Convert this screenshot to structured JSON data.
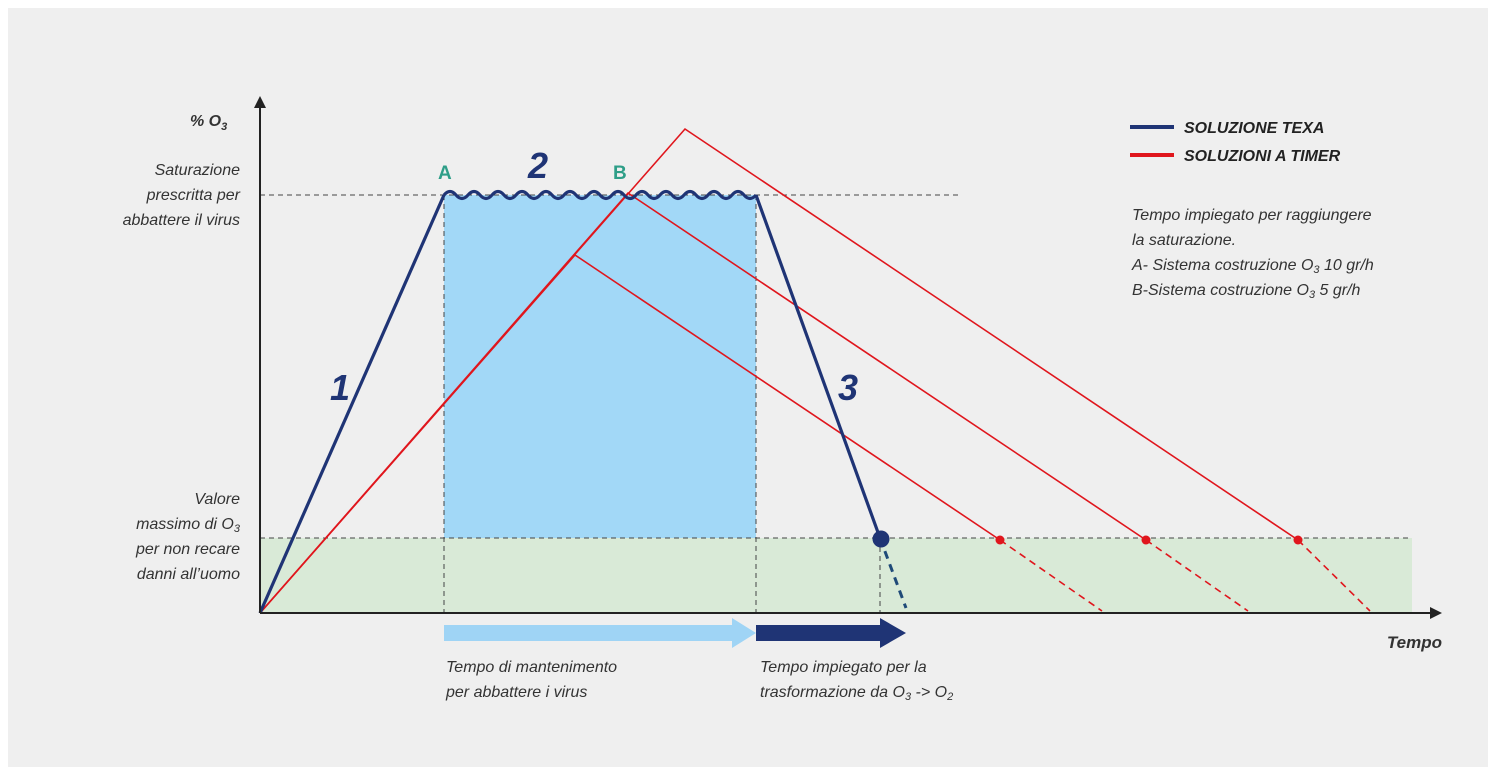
{
  "axes": {
    "y_label": "% O",
    "y_label_sub": "3",
    "x_label": "Tempo"
  },
  "y_levels": {
    "saturation": [
      "Saturazione",
      "prescritta per",
      "abbattere il virus"
    ],
    "max_safe": [
      "Valore",
      "massimo di O",
      "per non recare",
      "danni all’uomo"
    ],
    "max_safe_sub": "3"
  },
  "points": {
    "a": "A",
    "b": "B"
  },
  "phases": {
    "one": "1",
    "two": "2",
    "three": "3"
  },
  "legend": {
    "texa": {
      "label": "SOLUZIONE TEXA",
      "color": "#1f3475"
    },
    "timer": {
      "label": "SOLUZIONI A TIMER",
      "color": "#e0161d"
    }
  },
  "note": {
    "line1": "Tempo impiegato per raggiungere",
    "line2": "la saturazione.",
    "line3_pre": "A- Sistema costruzione O",
    "line3_sub": "3",
    "line3_post": " 10 gr/h",
    "line4_pre": "B-Sistema costruzione O",
    "line4_sub": "3",
    "line4_post": " 5 gr/h"
  },
  "arrows": {
    "maintenance": [
      "Tempo di mantenimento",
      "per abbattere i virus"
    ],
    "maintenance_color": "#9fd4f5",
    "transformation_line1": "Tempo impiegato per la",
    "transformation_pre": "trasformazione da O",
    "transformation_sub1": "3",
    "transformation_mid": " -> O",
    "transformation_sub2": "2",
    "transformation_color": "#1f3475"
  },
  "colors": {
    "maintenance_area": "#a2d8f7",
    "safe_band": "#d9ead7",
    "texa": "#1f3475",
    "timer": "#e0161d",
    "point_label": "#2e9e88"
  }
}
